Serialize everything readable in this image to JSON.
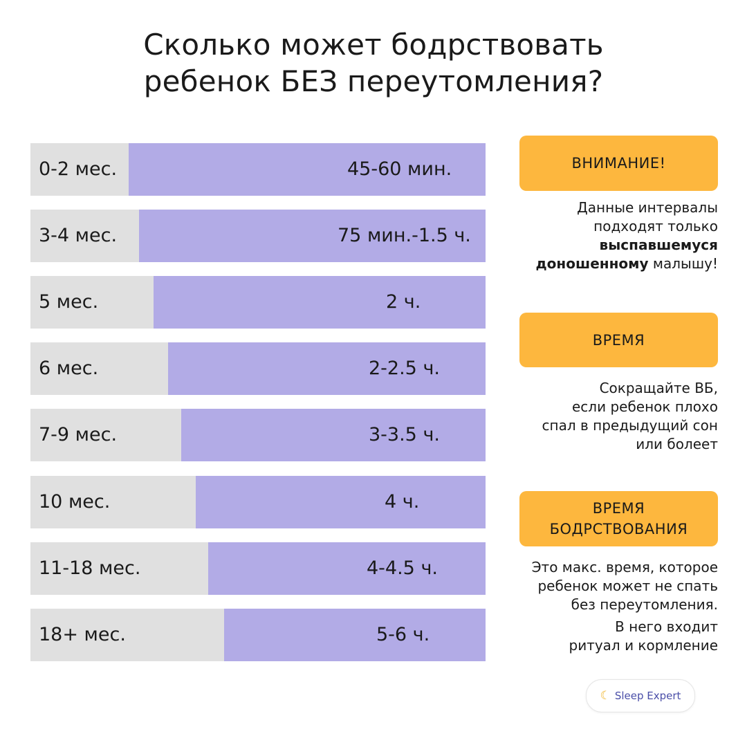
{
  "title": {
    "line1": "Сколько может бодрствовать",
    "line2": "ребенок БЕЗ переутомления?"
  },
  "rows": [
    {
      "age": "0-2 мес.",
      "value": "45-60 мин."
    },
    {
      "age": "3-4 мес.",
      "value": "75 мин.-1.5 ч."
    },
    {
      "age": "5 мес.",
      "value": "2 ч."
    },
    {
      "age": "6 мес.",
      "value": "2-2.5 ч."
    },
    {
      "age": "7-9 мес.",
      "value": "3-3.5 ч."
    },
    {
      "age": "10 мес.",
      "value": "4 ч."
    },
    {
      "age": "11-18 мес.",
      "value": "4-4.5 ч."
    },
    {
      "age": "18+ мес.",
      "value": "5-6 ч."
    }
  ],
  "sidebar": {
    "attention": {
      "badge": "ВНИМАНИЕ!",
      "line1": "Данные интервалы",
      "line2": "подходят только",
      "bold1": "выспавшемуся",
      "bold2": "доношенному",
      "tail": " малышу!"
    },
    "time": {
      "badge": "ВРЕМЯ",
      "line1": "Сокращайте ВБ,",
      "line2": "если ребенок плохо",
      "line3": "спал в предыдущий сон",
      "line4": "или болеет"
    },
    "wake_time": {
      "badge_line1": "ВРЕМЯ",
      "badge_line2": "БОДРСТВОВАНИЯ",
      "line1": "Это макс. время, которое",
      "line2": "ребенок может не спать",
      "line3": "без переутомления.",
      "line4": "В него входит",
      "line5": "ритуал и кормление"
    }
  },
  "logo": {
    "icon": "moon-star-icon",
    "text": "Sleep Expert"
  },
  "colors": {
    "bar_fill": "#b2abe6",
    "bar_bg": "#e0e0e0",
    "badge": "#fdb73e"
  }
}
